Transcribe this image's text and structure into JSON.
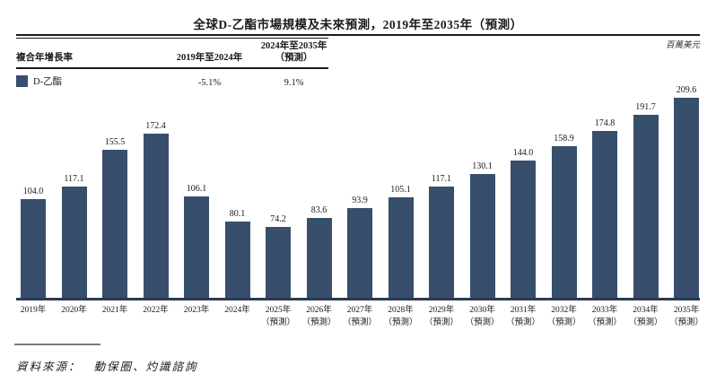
{
  "title": "全球D-乙酯市場規模及未來預測，2019年至2035年（預測）",
  "unit_label": "百萬美元",
  "cagr_table": {
    "row_header": "複合年增長率",
    "col1_header": "2019年至2024年",
    "col2_header_line1": "2024年至2035年",
    "col2_header_line2": "（預測）",
    "series_label": "D-乙酯",
    "col1_value": "-5.1%",
    "col2_value": "9.1%"
  },
  "source": {
    "prefix": "資料來源：",
    "text": "動保圈、灼識諮詢"
  },
  "colors": {
    "bar": "#384e6d",
    "axis": "#2b3a52",
    "rule": "#1a1a1a"
  },
  "chart_data": {
    "type": "bar",
    "title": "全球D-乙酯市場規模及未來預測，2019年至2035年（預測）",
    "xlabel": "",
    "ylabel": "百萬美元",
    "ylim": [
      0,
      220
    ],
    "grid": false,
    "legend_position": "top-left-table",
    "value_labels": true,
    "categories": [
      {
        "label": "2019年",
        "sublabel": ""
      },
      {
        "label": "2020年",
        "sublabel": ""
      },
      {
        "label": "2021年",
        "sublabel": ""
      },
      {
        "label": "2022年",
        "sublabel": ""
      },
      {
        "label": "2023年",
        "sublabel": ""
      },
      {
        "label": "2024年",
        "sublabel": ""
      },
      {
        "label": "2025年",
        "sublabel": "（預測）"
      },
      {
        "label": "2026年",
        "sublabel": "（預測）"
      },
      {
        "label": "2027年",
        "sublabel": "（預測）"
      },
      {
        "label": "2028年",
        "sublabel": "（預測）"
      },
      {
        "label": "2029年",
        "sublabel": "（預測）"
      },
      {
        "label": "2030年",
        "sublabel": "（預測）"
      },
      {
        "label": "2031年",
        "sublabel": "（預測）"
      },
      {
        "label": "2032年",
        "sublabel": "（預測）"
      },
      {
        "label": "2033年",
        "sublabel": "（預測）"
      },
      {
        "label": "2034年",
        "sublabel": "（預測）"
      },
      {
        "label": "2035年",
        "sublabel": "（預測）"
      }
    ],
    "series": [
      {
        "name": "D-乙酯",
        "values": [
          104.0,
          117.1,
          155.5,
          172.4,
          106.1,
          80.1,
          74.2,
          83.6,
          93.9,
          105.1,
          117.1,
          130.1,
          144.0,
          158.9,
          174.8,
          191.7,
          209.6
        ]
      }
    ]
  }
}
